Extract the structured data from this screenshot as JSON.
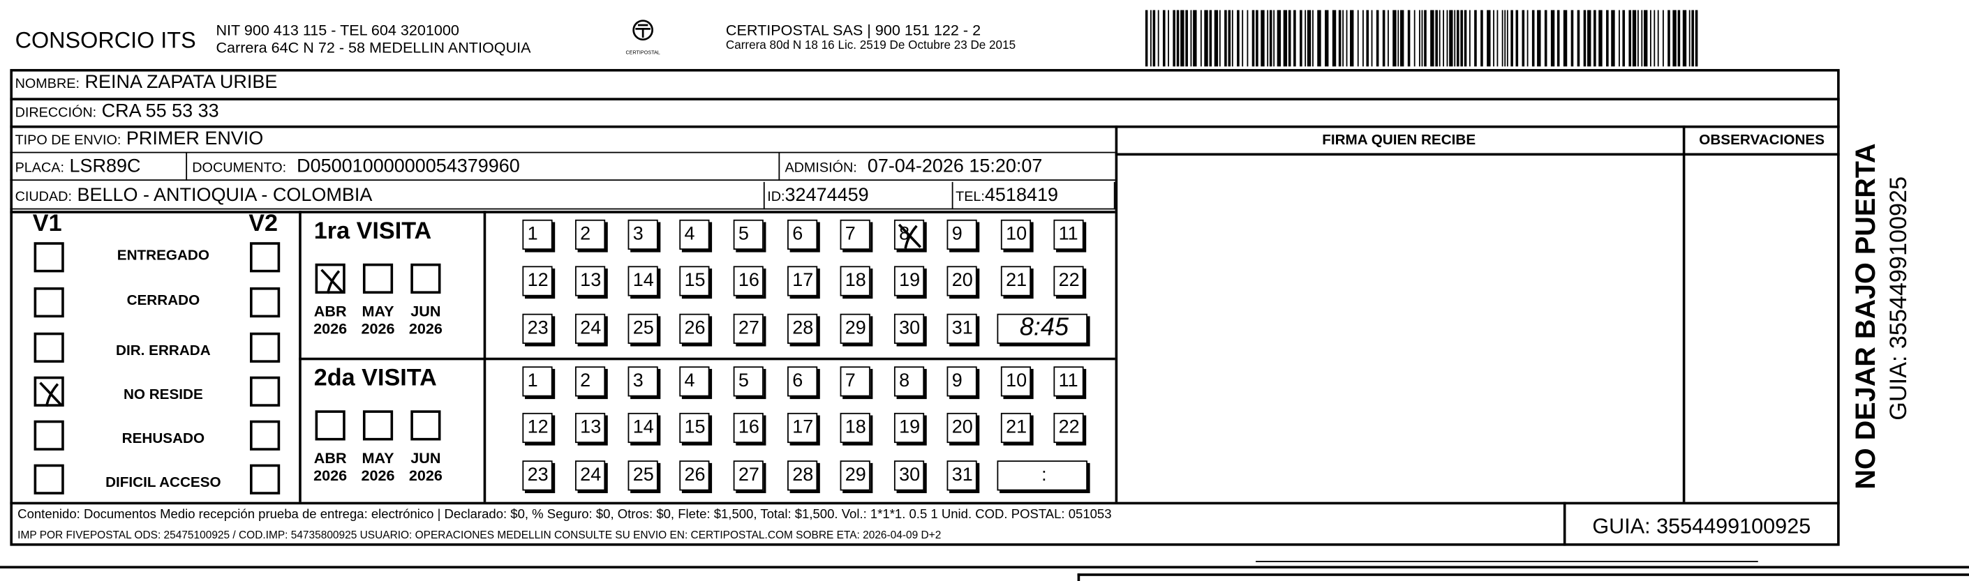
{
  "header": {
    "company": "CONSORCIO ITS",
    "company_line1": "NIT 900 413 115 - TEL 604 3201000",
    "company_line2": "Carrera 64C N 72 - 58 MEDELLIN ANTIOQUIA",
    "logo_text": "CERTIPOSTAL",
    "carrier_line1": "CERTIPOSTAL SAS | 900 151 122 - 2",
    "carrier_line2": "Carrera 80d N 18 16  Lic. 2519 De Octubre 23 De 2015",
    "barcode_icon": "barcode-icon"
  },
  "recipient": {
    "nombre_label": "NOMBRE:",
    "nombre": "REINA ZAPATA URIBE",
    "direccion_label": "DIRECCIÓN:",
    "direccion": "CRA 55 53 33",
    "tipo_label": "TIPO DE ENVIO:",
    "tipo": "PRIMER ENVIO",
    "placa_label": "PLACA:",
    "placa": "LSR89C",
    "documento_label": "DOCUMENTO:",
    "documento": "D05001000000054379960",
    "admision_label": "ADMISIÓN:",
    "admision": "07-04-2026 15:20:07",
    "ciudad_label": "CIUDAD:",
    "ciudad": "BELLO - ANTIOQUIA - COLOMBIA",
    "id_label": "ID:",
    "id": "32474459",
    "tel_label": "TEL:",
    "tel": "4518419"
  },
  "columns": {
    "firma": "FIRMA QUIEN RECIBE",
    "observaciones": "OBSERVACIONES"
  },
  "status": {
    "v1_label": "V1",
    "v2_label": "V2",
    "items": [
      {
        "label": "ENTREGADO",
        "v1": false,
        "v2": false
      },
      {
        "label": "CERRADO",
        "v1": false,
        "v2": false
      },
      {
        "label": "DIR. ERRADA",
        "v1": false,
        "v2": false
      },
      {
        "label": "NO RESIDE",
        "v1": true,
        "v2": false
      },
      {
        "label": "REHUSADO",
        "v1": false,
        "v2": false
      },
      {
        "label": "DIFICIL ACCESO",
        "v1": false,
        "v2": false
      }
    ]
  },
  "visits": [
    {
      "title": "1ra VISITA",
      "months": [
        {
          "m": "ABR",
          "y": "2026",
          "checked": true
        },
        {
          "m": "MAY",
          "y": "2026",
          "checked": false
        },
        {
          "m": "JUN",
          "y": "2026",
          "checked": false
        }
      ],
      "marked_day": 8,
      "time": "8:45"
    },
    {
      "title": "2da VISITA",
      "months": [
        {
          "m": "ABR",
          "y": "2026",
          "checked": false
        },
        {
          "m": "MAY",
          "y": "2026",
          "checked": false
        },
        {
          "m": "JUN",
          "y": "2026",
          "checked": false
        }
      ],
      "marked_day": null,
      "time": ":"
    }
  ],
  "days": [
    "1",
    "2",
    "3",
    "4",
    "5",
    "6",
    "7",
    "8",
    "9",
    "10",
    "11",
    "12",
    "13",
    "14",
    "15",
    "16",
    "17",
    "18",
    "19",
    "20",
    "21",
    "22",
    "23",
    "24",
    "25",
    "26",
    "27",
    "28",
    "29",
    "30",
    "31"
  ],
  "footer": {
    "contenido": "Contenido: Documentos Medio recepción prueba de entrega: electrónico | Declarado: $0, % Seguro: $0, Otros: $0, Flete: $1,500, Total: $1,500. Vol.: 1*1*1. 0.5  1 Unid. COD. POSTAL: 051053",
    "imp": "IMP POR FIVEPOSTAL ODS: 25475100925 / COD.IMP: 54735800925 USUARIO: OPERACIONES MEDELLIN CONSULTE SU ENVIO EN: CERTIPOSTAL.COM SOBRE ETA: 2026-04-09 D+2",
    "guia": "GUIA: 3554499100925"
  },
  "side": {
    "warning": "NO DEJAR BAJO PUERTA",
    "guia": "GUIA: 3554499100925"
  }
}
